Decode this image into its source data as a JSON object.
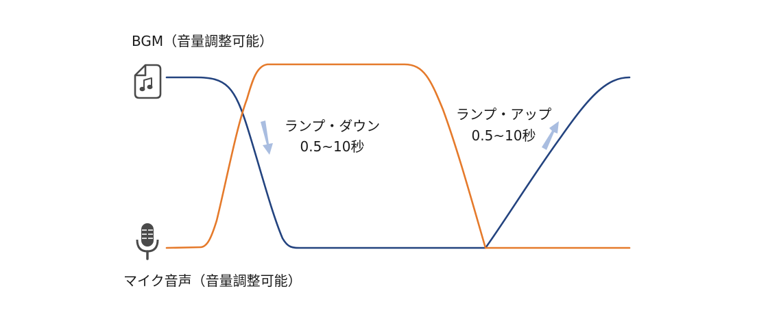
{
  "labels": {
    "bgm": "BGM（音量調整可能）",
    "mic": "マイク音声（音量調整可能）",
    "ramp_down_title": "ランプ・ダウン",
    "ramp_down_time": "0.5~10秒",
    "ramp_up_title": "ランプ・アップ",
    "ramp_up_time": "0.5~10秒"
  },
  "icons": {
    "bgm": "music-file-icon",
    "mic": "microphone-icon"
  },
  "colors": {
    "bgm_line": "#23437f",
    "mic_line": "#e57a2b",
    "arrow": "#a9bde0",
    "icon": "#4a4a4a"
  }
}
